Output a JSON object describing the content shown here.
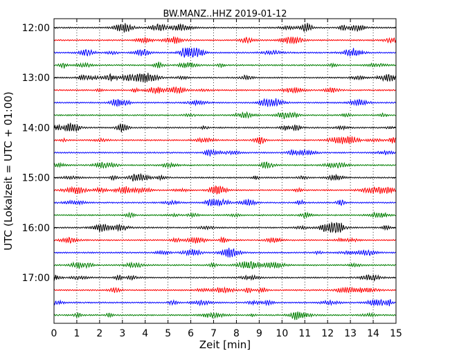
{
  "chart_data": {
    "type": "line",
    "title": "BW.MANZ..HHZ 2019-01-12",
    "xlabel": "Zeit  [min]",
    "ylabel": "UTC (Lokalzeit = UTC + 01:00)",
    "xlim": [
      0,
      15
    ],
    "x_ticks": [
      "0",
      "1",
      "2",
      "3",
      "4",
      "5",
      "6",
      "7",
      "8",
      "9",
      "10",
      "11",
      "12",
      "13",
      "14",
      "15"
    ],
    "y_ticks": [
      "12:00",
      "13:00",
      "14:00",
      "15:00",
      "16:00",
      "17:00"
    ],
    "trace_start": "12:00",
    "trace_interval_minutes": 15,
    "trace_count": 24,
    "grid": "vertical dotted at each minute",
    "colors": [
      "#000000",
      "#ff0000",
      "#0000ff",
      "#007f00"
    ]
  }
}
